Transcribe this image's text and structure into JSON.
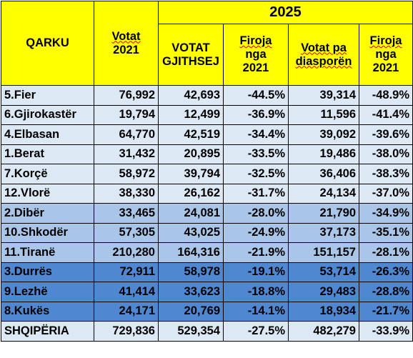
{
  "header": {
    "qarku": "QARKU",
    "votat2021_line1": "Votat",
    "votat2021_line2": "2021",
    "year": "2025",
    "votat_gjithsej_line1": "VOTAT",
    "votat_gjithsej_line2": "GJITHSEJ",
    "firoja1_line1": "Firoja",
    "firoja1_line2": "nga",
    "firoja1_line3": "2021",
    "pa_diaspore_line1": "Votat pa",
    "pa_diaspore_line2": "diasporën",
    "firoja2_line1": "Firoja",
    "firoja2_line2": "nga",
    "firoja2_line3": "2021"
  },
  "rows": [
    {
      "qarku": "5.Fier",
      "votat2021": "76,992",
      "gjithsej": "42,693",
      "firoja1": "-44.5%",
      "pa_diaspore": "39,314",
      "firoja2": "-48.9%"
    },
    {
      "qarku": "6.Gjirokastër",
      "votat2021": "19,794",
      "gjithsej": "12,499",
      "firoja1": "-36.9%",
      "pa_diaspore": "11,596",
      "firoja2": "-41.4%"
    },
    {
      "qarku": "4.Elbasan",
      "votat2021": "64,770",
      "gjithsej": "42,519",
      "firoja1": "-34.4%",
      "pa_diaspore": "39,092",
      "firoja2": "-39.6%"
    },
    {
      "qarku": "1.Berat",
      "votat2021": "31,432",
      "gjithsej": "20,895",
      "firoja1": "-33.5%",
      "pa_diaspore": "19,486",
      "firoja2": "-38.0%"
    },
    {
      "qarku": "7.Korçë",
      "votat2021": "58,972",
      "gjithsej": "39,794",
      "firoja1": "-32.5%",
      "pa_diaspore": "36,406",
      "firoja2": "-38.3%"
    },
    {
      "qarku": "12.Vlorë",
      "votat2021": "38,330",
      "gjithsej": "26,162",
      "firoja1": "-31.7%",
      "pa_diaspore": "24,134",
      "firoja2": "-37.0%"
    },
    {
      "qarku": "2.Dibër",
      "votat2021": "33,465",
      "gjithsej": "24,081",
      "firoja1": "-28.0%",
      "pa_diaspore": "21,790",
      "firoja2": "-34.9%"
    },
    {
      "qarku": "10.Shkodër",
      "votat2021": "57,305",
      "gjithsej": "43,025",
      "firoja1": "-24.9%",
      "pa_diaspore": "37,173",
      "firoja2": "-35.1%"
    },
    {
      "qarku": "11.Tiranë",
      "votat2021": "210,280",
      "gjithsej": "164,316",
      "firoja1": "-21.9%",
      "pa_diaspore": "151,157",
      "firoja2": "-28.1%"
    },
    {
      "qarku": "3.Durrës",
      "votat2021": "72,911",
      "gjithsej": "58,978",
      "firoja1": "-19.1%",
      "pa_diaspore": "53,714",
      "firoja2": "-26.3%"
    },
    {
      "qarku": "9.Lezhë",
      "votat2021": "41,414",
      "gjithsej": "33,623",
      "firoja1": "-18.8%",
      "pa_diaspore": "29,483",
      "firoja2": "-28.8%"
    },
    {
      "qarku": "8.Kukës",
      "votat2021": "24,171",
      "gjithsej": "20,769",
      "firoja1": "-14.1%",
      "pa_diaspore": "18,934",
      "firoja2": "-21.7%"
    },
    {
      "qarku": "SHQIPËRIA",
      "votat2021": "729,836",
      "gjithsej": "529,354",
      "firoja1": "-27.5%",
      "pa_diaspore": "482,279",
      "firoja2": "-33.9%"
    }
  ],
  "colors": {
    "header_bg": "#ffff00",
    "tier_light": "#dde8f5",
    "tier_mid": "#a9c6e8",
    "tier_dark": "#4f87d1"
  }
}
